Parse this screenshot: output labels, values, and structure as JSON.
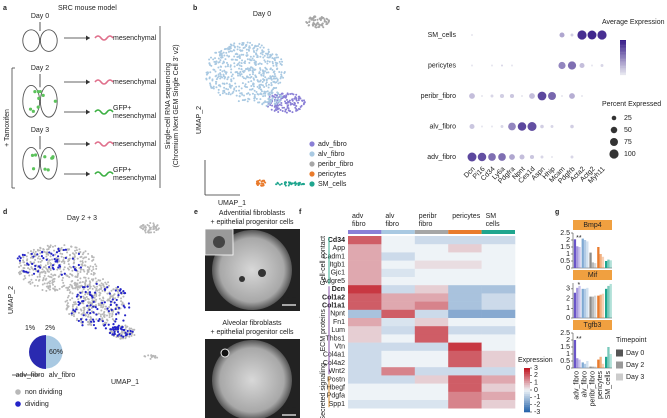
{
  "panels": {
    "a": {
      "label": "a",
      "title": "SRC mouse model",
      "treatment": "+ Tamoxifen",
      "method": [
        "Single-cell RNA sequencing",
        "(Chromium Next GEM Single Cell 3' v2)"
      ],
      "rows": [
        {
          "day": "Day 0",
          "outputs": [
            [
              "mesenchymal"
            ]
          ]
        },
        {
          "day": "Day 2",
          "outputs": [
            [
              "mesenchymal"
            ],
            [
              "GFP+",
              "mesenchymal"
            ]
          ]
        },
        {
          "day": "Day 3",
          "outputs": [
            [
              "mesenchymal"
            ],
            [
              "GFP+",
              "mesenchymal"
            ]
          ]
        }
      ]
    },
    "b": {
      "label": "b",
      "title": "Day 0",
      "x_label": "UMAP_1",
      "y_label": "UMAP_2",
      "legend": [
        {
          "name": "adv_fibro",
          "color": "#8a7fd6"
        },
        {
          "name": "alv_fibro",
          "color": "#a9c9e2"
        },
        {
          "name": "peribr_fibro",
          "color": "#a6a6a6"
        },
        {
          "name": "pericytes",
          "color": "#e97b2c"
        },
        {
          "name": "SM_cells",
          "color": "#1fa58e"
        }
      ]
    },
    "d": {
      "label": "d",
      "title": "Day 2 + 3",
      "x_label": "UMAP_1",
      "y_label": "UMAP_2",
      "pie_labels": [
        "1%",
        "2%",
        "60%"
      ],
      "pie_groups": [
        "adv_fibro",
        "alv_fibro"
      ],
      "legend": [
        {
          "name": "non dividing",
          "color": "#b8b8b8"
        },
        {
          "name": "dividing",
          "color": "#2323c8"
        }
      ]
    },
    "e": {
      "label": "e",
      "images": [
        {
          "title": [
            "Adventitial fibroblasts",
            "+ epithelial progenitor cells"
          ],
          "scale": "1mm"
        },
        {
          "title": [
            "Alveolar fibroblasts",
            "+ epithelial progenitor cells"
          ],
          "scale": "1mm"
        }
      ]
    }
  },
  "chart_data": [
    {
      "label": "c",
      "type": "dot",
      "categories": [
        "Dcn",
        "Pi16",
        "Cd34",
        "Ly6a",
        "Pdgfra",
        "Npnt",
        "Ces1d",
        "Aspn",
        "Hhip",
        "Mcam",
        "Pdgfrb",
        "Acta2",
        "Actg2",
        "Myh11"
      ],
      "rows": [
        "SM_cells",
        "pericytes",
        "peribr_fibro",
        "alv_fibro",
        "adv_fibro"
      ],
      "expression": [
        [
          0,
          0,
          0,
          0,
          0,
          0,
          0,
          0,
          0,
          0.8,
          0.3,
          2.3,
          2.4,
          2.3
        ],
        [
          0,
          0,
          0,
          0.2,
          0,
          0,
          0,
          0,
          0,
          1.2,
          1.5,
          0.5,
          0,
          0.2
        ],
        [
          0.5,
          0,
          0.2,
          0.3,
          0.4,
          0,
          0.5,
          2.0,
          1.6,
          0,
          0.7,
          0,
          0,
          0
        ],
        [
          0.4,
          0,
          0,
          0.2,
          1.2,
          2.0,
          1.9,
          0.3,
          0.2,
          0,
          0.3,
          0,
          0,
          0
        ],
        [
          2.0,
          1.9,
          1.5,
          1.5,
          0.8,
          0.5,
          0.4,
          0.2,
          0,
          0,
          0.2,
          0,
          0,
          0
        ]
      ],
      "percent": [
        [
          5,
          0,
          0,
          0,
          0,
          0,
          0,
          0,
          0,
          30,
          10,
          100,
          95,
          100
        ],
        [
          5,
          0,
          5,
          5,
          5,
          0,
          0,
          0,
          0,
          60,
          80,
          30,
          5,
          10
        ],
        [
          40,
          5,
          10,
          20,
          20,
          5,
          40,
          90,
          75,
          5,
          40,
          5,
          0,
          0
        ],
        [
          30,
          5,
          5,
          10,
          70,
          85,
          95,
          15,
          10,
          0,
          15,
          0,
          0,
          0
        ],
        [
          95,
          85,
          70,
          70,
          40,
          30,
          20,
          10,
          5,
          0,
          10,
          0,
          0,
          0
        ]
      ],
      "color_label": "Average Expression",
      "clim": [
        0,
        2.5
      ],
      "colors": [
        "#e6e6ef",
        "#3a1f8a"
      ],
      "size_label": "Percent Expressed",
      "size_ticks": [
        25,
        50,
        75,
        100
      ]
    },
    {
      "label": "f",
      "type": "heatmap",
      "columns": [
        [
          "adv",
          "fibro"
        ],
        [
          "alv",
          "fibro"
        ],
        [
          "peribr",
          "fibro"
        ],
        [
          "pericytes"
        ],
        [
          "SM",
          "cells"
        ]
      ],
      "column_colors": [
        "#8a7fd6",
        "#a9c9e2",
        "#a6a6a6",
        "#e97b2c",
        "#1fa58e"
      ],
      "groups": [
        {
          "name": "Cell-cell contact",
          "color": "#22a386",
          "genes": [
            "Cd34",
            "App",
            "Cadm1",
            "Itgb1",
            "Gjc1",
            "Adgre5"
          ],
          "bold": [
            true,
            false,
            false,
            false,
            false,
            false
          ],
          "values": [
            [
              2,
              0,
              -0.5,
              -0.5,
              -0.5
            ],
            [
              1,
              0,
              0,
              0.5,
              0
            ],
            [
              1,
              -0.5,
              0,
              0,
              0
            ],
            [
              1,
              0,
              0.3,
              0.3,
              0
            ],
            [
              1,
              -0.3,
              0,
              0,
              0
            ],
            [
              1,
              0,
              0,
              0,
              0
            ]
          ]
        },
        {
          "name": "ECM proteins",
          "color": "#7b3fa0",
          "genes": [
            "Dcn",
            "Col1a2",
            "Col1a1",
            "Npnt",
            "Fn1",
            "Lum",
            "Thbs1",
            "Vtn",
            "Col4a1",
            "Col4a2",
            "Wnt2"
          ],
          "bold": [
            true,
            true,
            true,
            false,
            false,
            false,
            false,
            false,
            false,
            false,
            false
          ],
          "values": [
            [
              2.5,
              -0.5,
              0.5,
              -1,
              -1
            ],
            [
              2,
              1,
              1,
              -1,
              -0.5
            ],
            [
              2,
              1,
              1.5,
              -1,
              -0.5
            ],
            [
              -1,
              2,
              -0.5,
              -1.5,
              -1.5
            ],
            [
              1,
              -0.3,
              0.5,
              0,
              0
            ],
            [
              0.5,
              -0.5,
              2,
              -0.5,
              -0.5
            ],
            [
              0.5,
              0,
              2,
              0,
              0
            ],
            [
              -0.5,
              -0.5,
              -0.5,
              2.5,
              0
            ],
            [
              -0.5,
              0,
              0,
              2,
              0.5
            ],
            [
              -0.5,
              0,
              0,
              2,
              0.5
            ],
            [
              -0.5,
              1.5,
              -0.5,
              -0.5,
              -0.5
            ]
          ]
        },
        {
          "name": "Secreted signaling",
          "color": "#e08a1e",
          "genes": [
            "Postn",
            "Hbegf",
            "Pdgfa",
            "Spp1"
          ],
          "bold": [
            false,
            false,
            false,
            false
          ],
          "values": [
            [
              -0.5,
              -0.5,
              0.5,
              2,
              1
            ],
            [
              0,
              0,
              0,
              2,
              0.5
            ],
            [
              0,
              0,
              0,
              1.5,
              1
            ],
            [
              -0.3,
              -0.3,
              -0.3,
              1.5,
              0.5
            ]
          ]
        }
      ],
      "legend_title": "Expression",
      "clim": [
        -3,
        3
      ],
      "ticks": [
        3,
        2,
        1,
        0,
        -1,
        -2,
        -3
      ],
      "colors": [
        "#1f5fa8",
        "#eef3f7",
        "#c0121e"
      ]
    },
    {
      "label": "g",
      "type": "bar",
      "title": "Bmp4",
      "categories": [
        "adv_fibro",
        "alv_fibro",
        "peribr_fibro",
        "pericytes",
        "SM_cells"
      ],
      "category_colors": [
        "#6a55c8",
        "#7fa9d3",
        "#8c8c8c",
        "#e97b2c",
        "#1fa58e"
      ],
      "ylim": [
        0,
        2.5
      ],
      "yticks": [
        0,
        0.5,
        1,
        1.5,
        2,
        2.5
      ],
      "series": [
        {
          "name": "Day 0",
          "color": "#555555",
          "opacity": 1,
          "values": [
            2.05,
            2.1,
            1.1,
            1.5,
            0.5
          ]
        },
        {
          "name": "Day 2",
          "color": "#999999",
          "opacity": 0.6,
          "values": [
            1.55,
            2.0,
            0.4,
            1.0,
            0.6
          ]
        },
        {
          "name": "Day 3",
          "color": "#cccccc",
          "opacity": 0.35,
          "values": [
            1.5,
            1.9,
            0.35,
            0.8,
            0.55
          ]
        }
      ],
      "annotations": [
        {
          "text": "**",
          "category": 0
        }
      ]
    },
    {
      "type": "bar",
      "title": "Mif",
      "categories": [
        "adv_fibro",
        "alv_fibro",
        "peribr_fibro",
        "pericytes",
        "SM_cells"
      ],
      "category_colors": [
        "#6a55c8",
        "#7fa9d3",
        "#8c8c8c",
        "#e97b2c",
        "#1fa58e"
      ],
      "ylim": [
        0,
        3.6
      ],
      "yticks": [
        0,
        1,
        2,
        3
      ],
      "series": [
        {
          "name": "Day 0",
          "color": "#555555",
          "opacity": 1,
          "values": [
            2.6,
            3.0,
            2.2,
            2.3,
            3.0
          ]
        },
        {
          "name": "Day 2",
          "color": "#999999",
          "opacity": 0.6,
          "values": [
            3.1,
            3.0,
            2.2,
            2.4,
            3.3
          ]
        },
        {
          "name": "Day 3",
          "color": "#cccccc",
          "opacity": 0.35,
          "values": [
            3.3,
            3.1,
            2.3,
            2.5,
            3.5
          ]
        }
      ],
      "annotations": [
        {
          "text": "*",
          "category": 0
        }
      ]
    },
    {
      "type": "bar",
      "title": "Tgfb3",
      "categories": [
        "adv_fibro",
        "alv_fibro",
        "peribr_fibro",
        "pericytes",
        "SM_cells"
      ],
      "category_colors": [
        "#6a55c8",
        "#7fa9d3",
        "#8c8c8c",
        "#e97b2c",
        "#1fa58e"
      ],
      "ylim": [
        0,
        2.5
      ],
      "yticks": [
        0,
        0.5,
        1,
        1.5,
        2,
        2.5
      ],
      "series": [
        {
          "name": "Day 0",
          "color": "#555555",
          "opacity": 1,
          "values": [
            2.0,
            0.4,
            0.1,
            0.6,
            0.8
          ]
        },
        {
          "name": "Day 2",
          "color": "#999999",
          "opacity": 0.6,
          "values": [
            0.7,
            0.3,
            0.1,
            0.8,
            1.5
          ]
        },
        {
          "name": "Day 3",
          "color": "#cccccc",
          "opacity": 0.35,
          "values": [
            0.6,
            0.5,
            0.1,
            0.3,
            1.0
          ]
        }
      ],
      "annotations": [
        {
          "text": "**",
          "category": 0
        }
      ],
      "legend_title": "Timepoint"
    }
  ]
}
